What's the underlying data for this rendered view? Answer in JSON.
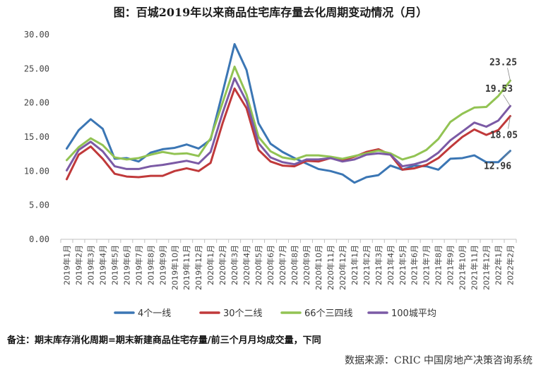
{
  "chart_data": {
    "type": "line",
    "title": "图：百城2019年以来商品住宅库存量去化周期变动情况（月）",
    "ylim": [
      0,
      30
    ],
    "yticks": [
      "0.00",
      "5.00",
      "10.00",
      "15.00",
      "20.00",
      "25.00",
      "30.00"
    ],
    "ytick_values": [
      0,
      5,
      10,
      15,
      20,
      25,
      30
    ],
    "grid": false,
    "legend_position": "bottom",
    "categories": [
      "2019年1月",
      "2019年2月",
      "2019年3月",
      "2019年4月",
      "2019年5月",
      "2019年6月",
      "2019年7月",
      "2019年8月",
      "2019年9月",
      "2019年10月",
      "2019年11月",
      "2019年12月",
      "2020年1月",
      "2020年2月",
      "2020年3月",
      "2020年4月",
      "2020年5月",
      "2020年6月",
      "2020年7月",
      "2020年8月",
      "2020年9月",
      "2020年10月",
      "2020年11月",
      "2020年12月",
      "2021年1月",
      "2021年2月",
      "2021年3月",
      "2021年4月",
      "2021年5月",
      "2021年6月",
      "2021年7月",
      "2021年8月",
      "2021年9月",
      "2021年10月",
      "2021年11月",
      "2021年12月",
      "2022年1月",
      "2022年2月"
    ],
    "series": [
      {
        "name": "4个一线",
        "color": "#3b76b4",
        "values": [
          13.3,
          16.0,
          17.6,
          16.2,
          11.8,
          11.9,
          11.4,
          12.7,
          13.2,
          13.4,
          13.9,
          13.3,
          14.6,
          21.5,
          28.6,
          24.8,
          17.0,
          14.0,
          12.8,
          11.9,
          11.1,
          10.3,
          10.0,
          9.5,
          8.3,
          9.1,
          9.4,
          10.8,
          10.2,
          10.8,
          10.7,
          10.2,
          11.8,
          11.9,
          12.3,
          11.3,
          11.3,
          12.96
        ],
        "end_label": "12.96"
      },
      {
        "name": "30个二线",
        "color": "#c0393a",
        "values": [
          8.8,
          12.4,
          13.6,
          11.8,
          9.6,
          9.2,
          9.1,
          9.3,
          9.3,
          10.0,
          10.4,
          10.0,
          11.2,
          17.0,
          22.1,
          19.2,
          13.1,
          11.4,
          10.8,
          10.7,
          11.5,
          11.4,
          11.9,
          11.6,
          12.1,
          12.8,
          13.2,
          12.4,
          10.2,
          10.4,
          10.9,
          11.9,
          13.5,
          15.0,
          16.1,
          15.3,
          16.0,
          18.05
        ],
        "end_label": "18.05"
      },
      {
        "name": "66个三四线",
        "color": "#92c353",
        "values": [
          11.6,
          13.5,
          14.8,
          13.8,
          12.0,
          11.7,
          11.9,
          12.4,
          12.8,
          12.5,
          12.6,
          12.2,
          14.8,
          20.0,
          25.3,
          21.2,
          15.0,
          12.9,
          12.0,
          11.7,
          12.3,
          12.3,
          12.1,
          11.8,
          12.2,
          12.6,
          13.0,
          12.6,
          11.7,
          12.2,
          13.1,
          14.7,
          17.2,
          18.4,
          19.3,
          19.4,
          21.0,
          23.25
        ],
        "end_label": "23.25"
      },
      {
        "name": "100城平均",
        "color": "#7b5aa5",
        "values": [
          10.1,
          13.1,
          14.3,
          12.9,
          10.7,
          10.3,
          10.3,
          10.7,
          10.9,
          11.2,
          11.5,
          11.1,
          12.8,
          18.5,
          23.6,
          20.2,
          14.1,
          12.0,
          11.3,
          11.0,
          11.7,
          11.7,
          11.9,
          11.4,
          11.7,
          12.4,
          12.6,
          12.4,
          10.7,
          11.0,
          11.5,
          12.7,
          14.5,
          15.8,
          17.1,
          16.5,
          17.4,
          19.53
        ],
        "end_label": "19.53"
      }
    ]
  },
  "note": "备注：期末库存消化周期=期末新建商品住宅存量/前三个月月均成交量，下同",
  "source": "数据来源：CRIC 中国房地产决策咨询系统"
}
